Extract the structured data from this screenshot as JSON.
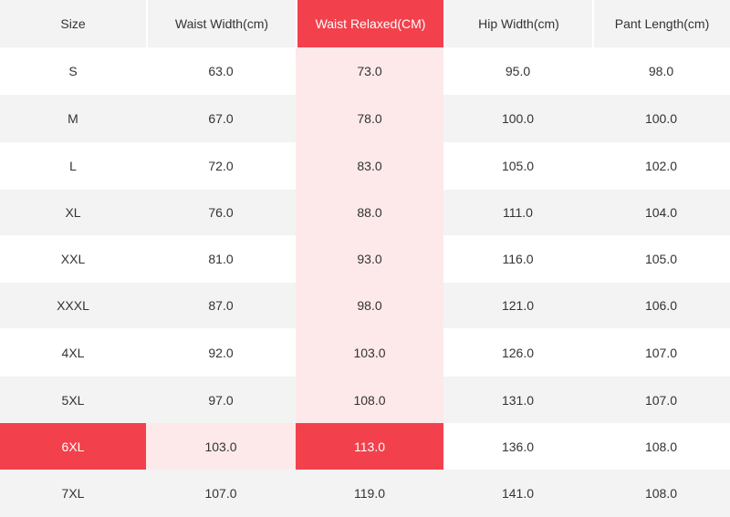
{
  "headers": [
    "Size",
    "Waist Width(cm)",
    "Waist Relaxed(CM)",
    "Hip Width(cm)",
    "Pant Length(cm)"
  ],
  "rows": [
    [
      "S",
      "63.0",
      "73.0",
      "95.0",
      "98.0"
    ],
    [
      "M",
      "67.0",
      "78.0",
      "100.0",
      "100.0"
    ],
    [
      "L",
      "72.0",
      "83.0",
      "105.0",
      "102.0"
    ],
    [
      "XL",
      "76.0",
      "88.0",
      "111.0",
      "104.0"
    ],
    [
      "XXL",
      "81.0",
      "93.0",
      "116.0",
      "105.0"
    ],
    [
      "XXXL",
      "87.0",
      "98.0",
      "121.0",
      "106.0"
    ],
    [
      "4XL",
      "92.0",
      "103.0",
      "126.0",
      "107.0"
    ],
    [
      "5XL",
      "97.0",
      "108.0",
      "131.0",
      "107.0"
    ],
    [
      "6XL",
      "103.0",
      "113.0",
      "136.0",
      "108.0"
    ],
    [
      "7XL",
      "107.0",
      "119.0",
      "141.0",
      "108.0"
    ]
  ],
  "highlight": {
    "column": "Waist Relaxed(CM)",
    "row": "6XL",
    "strong_color": "#f2414c",
    "light_color": "#fde9ea"
  }
}
